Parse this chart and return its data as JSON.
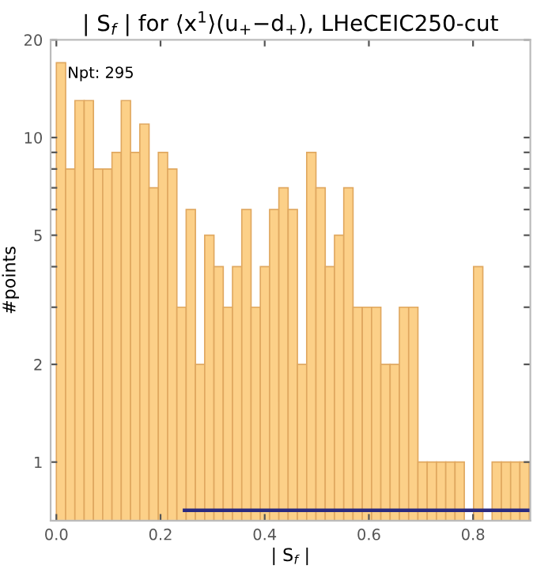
{
  "chart_data": {
    "type": "histogram",
    "title": "| S$_{f}$ | for ⟨x$^{1}$⟩(u$_{+}$−d$_{+}$), LHeCEIC250-cut",
    "xlabel": "| S$_{f}$ |",
    "ylabel": "#points",
    "annotations": [
      "Npt: 295"
    ],
    "bins": [
      0,
      0.0178,
      0.0356,
      0.0534,
      0.0712,
      0.089,
      0.1068,
      0.1246,
      0.1424,
      0.1602,
      0.178,
      0.1958,
      0.2136,
      0.2314,
      0.2492,
      0.267,
      0.2848,
      0.3026,
      0.3204,
      0.3382,
      0.356,
      0.3738,
      0.3916,
      0.4094,
      0.4272,
      0.445,
      0.4628,
      0.4806,
      0.4984,
      0.5162,
      0.534,
      0.5518,
      0.5696,
      0.5874,
      0.6052,
      0.623,
      0.6408,
      0.6586,
      0.6764,
      0.6942,
      0.712,
      0.7298,
      0.7476,
      0.7654,
      0.7832,
      0.801,
      0.8188,
      0.8366,
      0.8544,
      0.8722,
      0.89,
      0.9078
    ],
    "values": [
      17,
      8,
      13,
      13,
      8,
      8,
      9,
      13,
      9,
      11,
      7,
      9,
      8,
      3,
      6,
      2,
      5,
      4,
      3,
      4,
      6,
      3,
      4,
      6,
      7,
      6,
      2,
      9,
      7,
      4,
      5,
      7,
      3,
      3,
      3,
      2,
      2,
      3,
      3,
      1,
      1,
      1,
      1,
      1,
      null,
      4,
      null,
      1,
      1,
      1,
      1
    ],
    "color": "#fcd088",
    "series": [
      {
        "type": "line",
        "color": "#2b2b80",
        "x": [
          0.246,
          0.91
        ],
        "values": [
          0.71,
          0.71
        ]
      }
    ],
    "log": "y",
    "grid": false,
    "xlim": [
      -0.011,
      0.91
    ],
    "xticks": [
      {
        "value": 0,
        "label": "0.0"
      },
      0.2,
      0.4,
      0.6,
      0.8
    ],
    "ylim": [
      0.66,
      20
    ],
    "yticks": [
      1,
      2,
      {
        "value": 3,
        "label": null
      },
      {
        "value": 4,
        "label": null
      },
      5,
      {
        "value": 6,
        "label": null
      },
      {
        "value": 7,
        "label": null
      },
      {
        "value": 8,
        "label": null
      },
      {
        "value": 9,
        "label": null
      },
      10,
      20
    ]
  }
}
